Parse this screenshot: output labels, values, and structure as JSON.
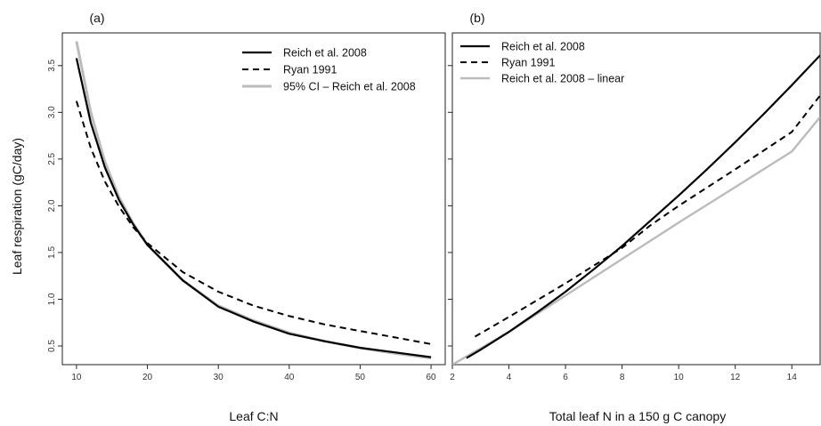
{
  "ylabel": "Leaf respiration (gC/day)",
  "chart_data": [
    {
      "type": "line",
      "panel_label": "(a)",
      "xlabel": "Leaf C:N",
      "ylabel": "Leaf respiration (gC/day)",
      "xlim": [
        8,
        62
      ],
      "ylim": [
        0.3,
        3.85
      ],
      "xticks": [
        10,
        20,
        30,
        40,
        50,
        60
      ],
      "yticks": [
        0.5,
        1.0,
        1.5,
        2.0,
        2.5,
        3.0,
        3.5
      ],
      "ytick_labels": [
        "0.5",
        "1.0",
        "1.5",
        "2.0",
        "2.5",
        "3.0",
        "3.5"
      ],
      "legend_position": "top-right",
      "series": [
        {
          "name": "Reich et al. 2008",
          "color": "#000000",
          "dash": "solid",
          "width": 2.2,
          "x": [
            10,
            12,
            14,
            16,
            18,
            20,
            25,
            30,
            35,
            40,
            45,
            50,
            55,
            60
          ],
          "y": [
            3.58,
            2.89,
            2.41,
            2.06,
            1.8,
            1.58,
            1.2,
            0.92,
            0.76,
            0.63,
            0.55,
            0.48,
            0.43,
            0.38
          ]
        },
        {
          "name": "Ryan 1991",
          "color": "#000000",
          "dash": "dashed",
          "width": 2,
          "x": [
            10,
            12,
            14,
            16,
            18,
            20,
            25,
            30,
            35,
            40,
            45,
            50,
            55,
            60
          ],
          "y": [
            3.12,
            2.62,
            2.26,
            1.99,
            1.77,
            1.6,
            1.29,
            1.08,
            0.93,
            0.82,
            0.73,
            0.66,
            0.59,
            0.52
          ]
        },
        {
          "name": "95% CI – Reich et al. 2008",
          "color": "#bbbbbb",
          "dash": "solid",
          "width": 3,
          "x": [
            10,
            12,
            14,
            16,
            18,
            20,
            25,
            30,
            35,
            40,
            45,
            50,
            55,
            60
          ],
          "y": [
            3.76,
            3.0,
            2.47,
            2.09,
            1.81,
            1.58,
            1.2,
            0.93,
            0.77,
            0.64,
            0.55,
            0.48,
            0.42,
            0.37
          ]
        }
      ]
    },
    {
      "type": "line",
      "panel_label": "(b)",
      "xlabel": "Total leaf N in a 150 g C canopy",
      "xlim": [
        2,
        15
      ],
      "xticks": [
        2,
        4,
        6,
        8,
        10,
        12,
        14
      ],
      "legend_position": "top-left",
      "series": [
        {
          "name": "Reich et al. 2008",
          "color": "#000000",
          "dash": "solid",
          "width": 2.2,
          "x": [
            2.5,
            3,
            4,
            5,
            6,
            7,
            8,
            9,
            10,
            11,
            12,
            13,
            14,
            15
          ],
          "y": [
            0.37,
            0.46,
            0.65,
            0.86,
            1.08,
            1.32,
            1.57,
            1.84,
            2.11,
            2.39,
            2.68,
            2.98,
            3.29,
            3.61
          ]
        },
        {
          "name": "Ryan 1991",
          "color": "#000000",
          "dash": "dashed",
          "width": 2,
          "x": [
            2.8,
            4,
            6,
            8,
            9,
            10,
            12,
            14,
            15
          ],
          "y": [
            0.6,
            0.81,
            1.17,
            1.55,
            1.79,
            2.0,
            2.39,
            2.79,
            3.18
          ]
        },
        {
          "name": "Reich et al. 2008 – linear",
          "color": "#bbbbbb",
          "dash": "solid",
          "width": 2.4,
          "x": [
            2,
            4,
            6,
            8,
            10,
            12,
            14,
            15
          ],
          "y": [
            0.3,
            0.65,
            1.04,
            1.43,
            1.82,
            2.2,
            2.58,
            2.95
          ]
        }
      ]
    }
  ]
}
